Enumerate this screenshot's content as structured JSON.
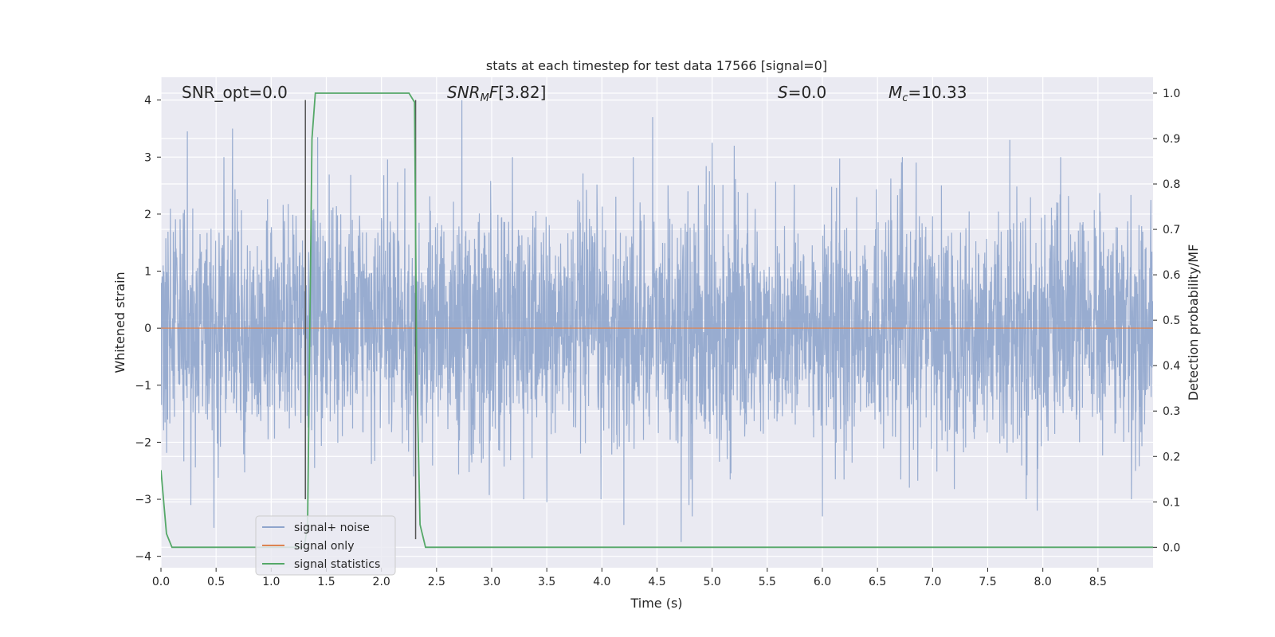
{
  "chart_data": {
    "type": "line",
    "title": "stats at each timestep for test data 17566 [signal=0]",
    "xlabel": "Time (s)",
    "ylabel": "Whitened strain",
    "y2label": "Detection probability/MF",
    "xlim": [
      0,
      9.0
    ],
    "ylim": [
      -4.2,
      4.4
    ],
    "y2lim": [
      -0.045,
      1.035
    ],
    "x_ticks": [
      "0.0",
      "0.5",
      "1.0",
      "1.5",
      "2.0",
      "2.5",
      "3.0",
      "3.5",
      "4.0",
      "4.5",
      "5.0",
      "5.5",
      "6.0",
      "6.5",
      "7.0",
      "7.5",
      "8.0",
      "8.5"
    ],
    "y_ticks": [
      "4",
      "3",
      "2",
      "1",
      "0",
      "−1",
      "−2",
      "−3",
      "−4"
    ],
    "y2_ticks": [
      "1.0",
      "0.9",
      "0.8",
      "0.7",
      "0.6",
      "0.5",
      "0.4",
      "0.3",
      "0.2",
      "0.1",
      "0.0"
    ],
    "grid": true,
    "legend_position": "lower-left",
    "annotations": {
      "snr_opt": "SNR_opt=0.0",
      "snr_mf": "[3.82]",
      "s": "=0.0",
      "mc": "=10.33"
    },
    "series": [
      {
        "name": "signal+ noise",
        "color": "#8fa5cc",
        "axis": "left",
        "description_type": "noise",
        "sample_rate": 409.6,
        "amplitude_sigma": 1.0,
        "extreme_peaks": [
          [
            0.24,
            3.45
          ],
          [
            0.65,
            3.5
          ],
          [
            1.42,
            3.35
          ],
          [
            2.73,
            4.0
          ],
          [
            4.46,
            3.7
          ],
          [
            5.0,
            3.25
          ],
          [
            5.2,
            3.2
          ],
          [
            7.7,
            3.3
          ],
          [
            0.48,
            -3.5
          ],
          [
            4.72,
            -3.75
          ],
          [
            4.2,
            -3.45
          ],
          [
            4.82,
            -3.3
          ],
          [
            4.79,
            -3.1
          ],
          [
            3.5,
            -3.05
          ],
          [
            0.27,
            -3.1
          ],
          [
            6.0,
            -3.3
          ],
          [
            7.95,
            -3.2
          ]
        ]
      },
      {
        "name": "signal only",
        "color": "#dd8452",
        "axis": "left",
        "x": [
          0,
          9.0
        ],
        "y": [
          0,
          0
        ]
      },
      {
        "name": "signal statistics",
        "color": "#55a868",
        "axis": "right",
        "x": [
          0.0,
          0.05,
          0.1,
          1.3,
          1.33,
          1.37,
          1.4,
          1.45,
          2.25,
          2.3,
          2.32,
          2.35,
          2.4,
          2.45,
          9.0
        ],
        "y": [
          0.17,
          0.03,
          0.0,
          0.0,
          0.05,
          0.9,
          1.0,
          1.0,
          1.0,
          0.98,
          0.4,
          0.05,
          0.0,
          0.0,
          0.0
        ]
      }
    ],
    "vlines": [
      {
        "x": 1.31,
        "y_from": -3.0,
        "y_to": 4.0,
        "color": "#555555"
      },
      {
        "x": 2.31,
        "y_from": -3.7,
        "y_to": 4.0,
        "color": "#555555"
      }
    ]
  }
}
